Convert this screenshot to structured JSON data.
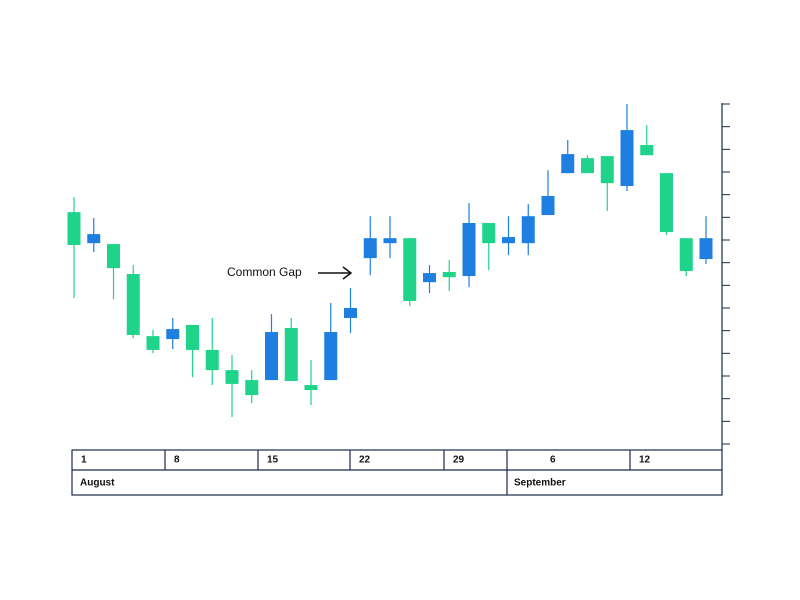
{
  "chart_data": {
    "type": "candlestick",
    "annotation": "Common Gap",
    "up_color": "#1f7fe0",
    "down_color": "#1fd38a",
    "open": [
      10.23,
      8.86,
      8.82,
      7.5,
      4.76,
      4.63,
      5.25,
      4.15,
      3.26,
      2.82,
      2.82,
      5.12,
      2.6,
      2.82,
      5.56,
      8.2,
      8.86,
      9.08,
      7.14,
      7.59,
      7.41,
      9.75,
      8.86,
      8.86,
      10.1,
      11.95,
      12.61,
      12.7,
      11.38,
      13.19,
      11.95,
      9.08,
      8.16
    ],
    "high": [
      10.89,
      9.97,
      8.82,
      7.89,
      5.03,
      5.56,
      5.25,
      5.56,
      3.92,
      3.26,
      5.73,
      5.56,
      3.7,
      6.22,
      6.88,
      10.05,
      10.05,
      9.08,
      7.89,
      8.11,
      10.63,
      9.75,
      10.05,
      10.58,
      12.08,
      13.41,
      12.74,
      12.7,
      15.0,
      14.07,
      11.95,
      9.08,
      10.05
    ],
    "low": [
      6.44,
      8.47,
      6.39,
      4.67,
      4.01,
      4.19,
      2.95,
      2.6,
      1.19,
      1.81,
      2.82,
      2.78,
      1.72,
      2.82,
      4.9,
      7.45,
      8.2,
      6.09,
      6.66,
      6.75,
      6.92,
      7.67,
      8.33,
      8.33,
      10.1,
      11.95,
      11.95,
      10.28,
      11.16,
      12.74,
      9.22,
      7.41,
      7.94
    ],
    "close": [
      8.78,
      9.26,
      7.76,
      4.81,
      4.15,
      5.07,
      4.15,
      3.26,
      2.65,
      2.16,
      4.94,
      2.78,
      2.38,
      4.94,
      6.0,
      9.08,
      9.08,
      6.31,
      7.54,
      7.36,
      9.75,
      8.86,
      9.13,
      10.05,
      10.94,
      12.79,
      11.95,
      11.51,
      13.85,
      12.74,
      9.35,
      7.63,
      9.08
    ],
    "ylim": [
      0,
      15
    ],
    "yticks": [
      0,
      1,
      2,
      3,
      4,
      5,
      6,
      7,
      8,
      9,
      10,
      11,
      12,
      13,
      14,
      15
    ],
    "weeks": [
      "1",
      "8",
      "15",
      "22",
      "29",
      "6",
      "12"
    ],
    "months": [
      "August",
      "September"
    ]
  }
}
